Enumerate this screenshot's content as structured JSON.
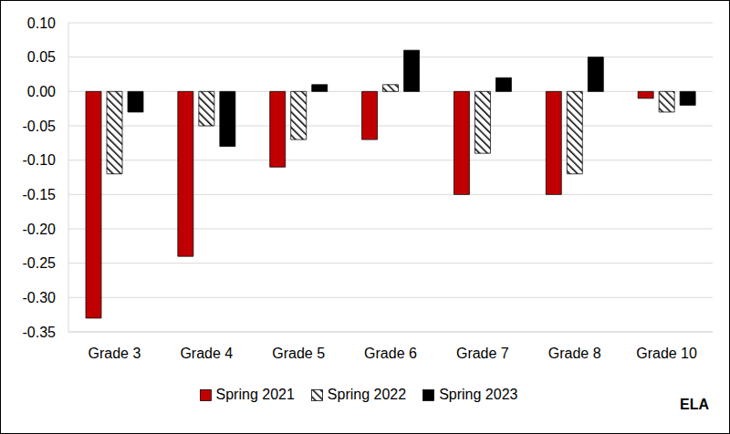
{
  "chart_data": {
    "type": "bar",
    "categories": [
      "Grade 3",
      "Grade 4",
      "Grade 5",
      "Grade 6",
      "Grade 7",
      "Grade 8",
      "Grade 10"
    ],
    "series": [
      {
        "name": "Spring 2021",
        "color": "#c00000",
        "values": [
          -0.33,
          -0.24,
          -0.11,
          -0.07,
          -0.15,
          -0.15,
          -0.01
        ]
      },
      {
        "name": "Spring 2022",
        "color": "#000000",
        "values": [
          -0.12,
          -0.05,
          -0.07,
          0.01,
          -0.09,
          -0.12,
          -0.03
        ]
      },
      {
        "name": "Spring 2023",
        "color": "#000000",
        "values": [
          -0.03,
          -0.08,
          0.01,
          0.06,
          0.02,
          0.05,
          -0.02
        ]
      }
    ],
    "ylim": [
      -0.35,
      0.1
    ],
    "yticks": [
      -0.35,
      {
        "value": -0.3,
        "label": "-0.30"
      },
      -0.25,
      {
        "value": -0.2,
        "label": "-0.20"
      },
      -0.15,
      {
        "value": -0.1,
        "label": "-0.10"
      },
      -0.05,
      {
        "value": 0,
        "label": "0.00"
      },
      0.05,
      {
        "value": 0.1,
        "label": "0.10"
      }
    ],
    "grid": true,
    "legend": "bottom",
    "annotation": "ELA"
  }
}
